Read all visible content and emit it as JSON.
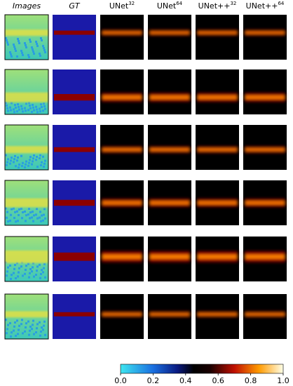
{
  "columns": [
    {
      "base": "Images",
      "italic": true
    },
    {
      "base": "GT",
      "italic": true
    },
    {
      "base": "UNet",
      "sup": "32"
    },
    {
      "base": "UNet",
      "sup": "64"
    },
    {
      "base": "UNet++",
      "sup": "32"
    },
    {
      "base": "UNet++",
      "sup": "64"
    }
  ],
  "colorbar": {
    "range": [
      0,
      1
    ],
    "ticks": [
      {
        "value": 0,
        "label": "0.0"
      },
      {
        "value": 0.2,
        "label": "0.2"
      },
      {
        "value": 0.4,
        "label": "0.4"
      },
      {
        "value": 0.6,
        "label": "0.6"
      },
      {
        "value": 0.8,
        "label": "0.8"
      },
      {
        "value": 1,
        "label": "1.0"
      }
    ]
  }
}
